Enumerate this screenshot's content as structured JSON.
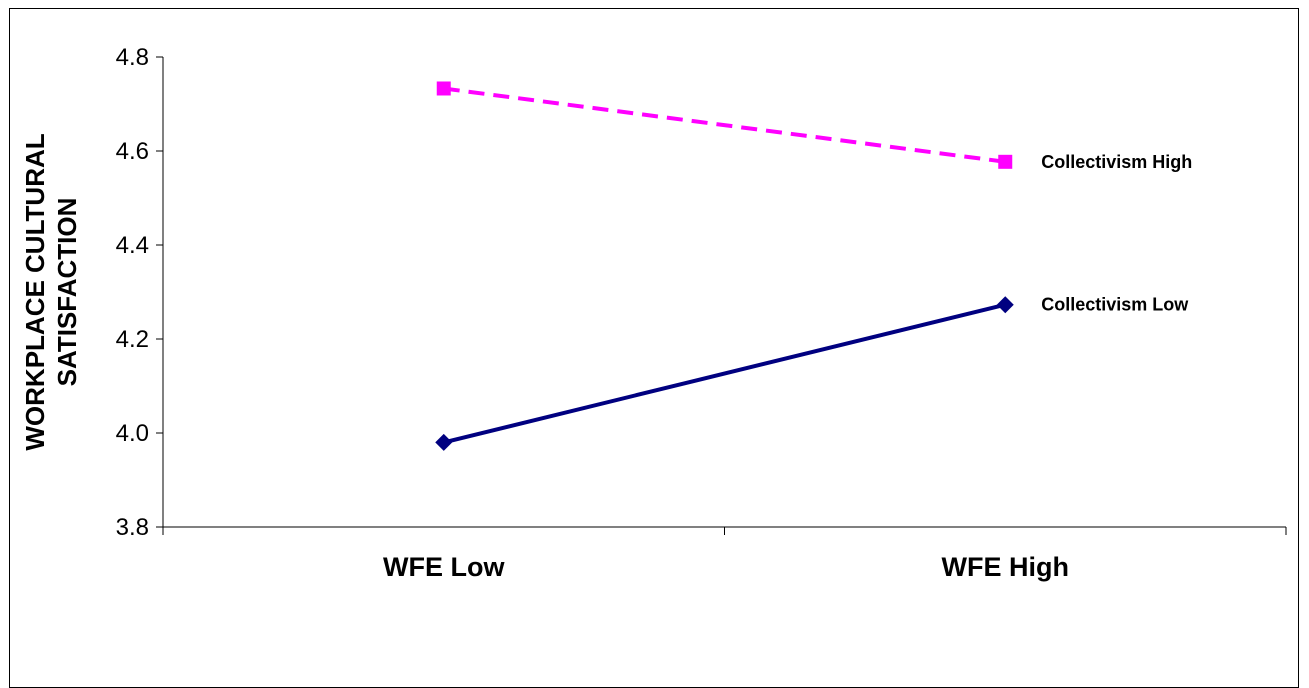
{
  "chart_data": {
    "type": "line",
    "title": "",
    "xlabel": "",
    "ylabel_lines": [
      "WORKPLACE  CULTURAL",
      "SATISFACTION"
    ],
    "categories": [
      "WFE Low",
      "WFE High"
    ],
    "ylim": [
      3.8,
      4.8
    ],
    "yticks": [
      "3.8",
      "4.0",
      "4.2",
      "4.4",
      "4.6",
      "4.8"
    ],
    "grid": false,
    "legend": "inline labels at line ends",
    "series": [
      {
        "name": "Collectivism High",
        "values": [
          4.733,
          4.577
        ],
        "color": "#FF00FF",
        "dash": "dashed",
        "marker": "square"
      },
      {
        "name": "Collectivism Low",
        "values": [
          3.98,
          4.273
        ],
        "color": "#000080",
        "dash": "solid",
        "marker": "diamond"
      }
    ]
  }
}
